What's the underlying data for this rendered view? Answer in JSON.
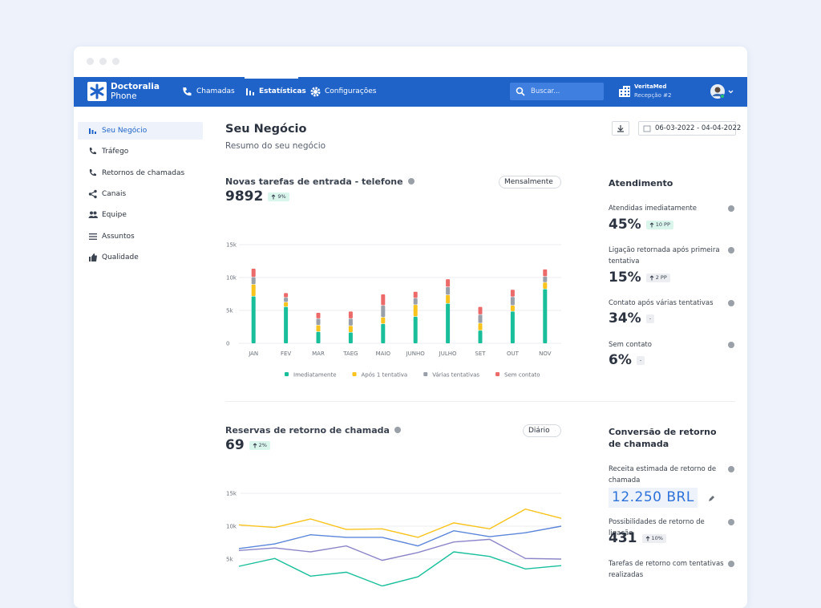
{
  "nav": {
    "brand_name": "Doctoralia",
    "brand_product": "Phone",
    "items": [
      "Chamadas",
      "Estatísticas",
      "Configurações"
    ],
    "search_placeholder": "Buscar...",
    "account_name": "VeritaMed",
    "account_location": "Recepção #2"
  },
  "sidebar": {
    "items": [
      "Seu Negócio",
      "Tráfego",
      "Retornos de chamadas",
      "Canais",
      "Equipe",
      "Assuntos",
      "Qualidade"
    ]
  },
  "header": {
    "title": "Seu Negócio",
    "subtitle": "Resumo do seu negócio",
    "date_range": "06-03-2022 - 04-04-2022"
  },
  "sections": [
    {
      "title": "Novas tarefas de entrada - telefone",
      "total": 9892,
      "change": "9%",
      "change_color": "#d9f5ec",
      "period": "Mensalmente"
    },
    {
      "title": "Reservas de retorno de chamada",
      "total": 69,
      "change": "2%",
      "change_color": "#d9f5ec",
      "period": "Diário"
    }
  ],
  "panels": [
    {
      "title": "Atendimento",
      "metrics": [
        {
          "label": "Atendidas imediatamente",
          "value": "45%",
          "change": "10 PP",
          "trend": "up",
          "change_color": "#d9f5ec"
        },
        {
          "label": "Ligação retornada após primeira tentativa",
          "value": "15%",
          "change": "2 PP",
          "trend": "up",
          "change_color": "#eceef1"
        },
        {
          "label": "Contato após várias tentativas",
          "value": "34%",
          "change": "-",
          "change_color": "#eceef1"
        },
        {
          "label": "Sem contato",
          "value": "6%",
          "change": "-",
          "change_color": "#eceef1"
        }
      ]
    },
    {
      "title": "Conversão de retorno de chamada",
      "metrics": [
        {
          "label": "Receita estimada de retorno de chamada",
          "value": "12.250 BRL",
          "editable": true
        },
        {
          "label": "Possibilidades de retorno de ligação",
          "value": "431",
          "change": "10%",
          "trend": "up",
          "change_color": "#eceef1"
        },
        {
          "label": "Tarefas de retorno com tentativas realizadas"
        }
      ]
    }
  ],
  "chart_data": [
    {
      "type": "bar",
      "stacked": true,
      "grid": true,
      "legend": "bottom",
      "categories": [
        "JAN",
        "FEV",
        "MAR",
        "TAEG",
        "MAIO",
        "JUNHO",
        "JULHO",
        "SET",
        "OUT",
        "NOV"
      ],
      "series": [
        {
          "name": "Imediatamente",
          "color": "#19bf9b",
          "values": [
            7200,
            5600,
            1800,
            1700,
            3000,
            4100,
            6100,
            2000,
            4900,
            8300
          ]
        },
        {
          "name": "Após 1 tentativa",
          "color": "#f8c31c",
          "values": [
            1800,
            700,
            1000,
            1000,
            1000,
            1800,
            1300,
            1100,
            900,
            1000
          ]
        },
        {
          "name": "Várias tentativas",
          "color": "#99a0aa",
          "values": [
            1100,
            700,
            1000,
            1100,
            1800,
            1000,
            1200,
            1300,
            1300,
            900
          ]
        },
        {
          "name": "Sem contato",
          "color": "#ec6a6a",
          "values": [
            1300,
            700,
            900,
            1100,
            1700,
            1000,
            1200,
            1200,
            1100,
            1100
          ]
        }
      ],
      "ylim": [
        0,
        15000
      ],
      "yticks": [
        0,
        {
          "value": 5000,
          "label": "5k"
        },
        {
          "value": 10000,
          "label": "10k"
        },
        {
          "value": 15000,
          "label": "15k"
        }
      ]
    },
    {
      "type": "line",
      "grid": true,
      "series": [
        {
          "color": "#f8c31c",
          "values": [
            10200,
            9800,
            11100,
            9500,
            9600,
            8300,
            10500,
            9600,
            12600,
            11200
          ]
        },
        {
          "color": "#5b86d9",
          "values": [
            6600,
            7300,
            8700,
            8300,
            8300,
            7000,
            9300,
            8400,
            9000,
            10000
          ]
        },
        {
          "color": "#8c86c9",
          "values": [
            6300,
            6700,
            6100,
            7000,
            4800,
            6000,
            7600,
            8000,
            5100,
            5000
          ]
        },
        {
          "color": "#19bf9b",
          "values": [
            3900,
            5100,
            2400,
            3000,
            900,
            2300,
            6100,
            5400,
            3500,
            4000
          ]
        }
      ],
      "ylim": [
        0,
        15000
      ],
      "yticks": [
        {
          "value": 5000,
          "label": "5k"
        },
        {
          "value": 10000,
          "label": "10k"
        },
        {
          "value": 15000,
          "label": "15k"
        }
      ]
    }
  ]
}
